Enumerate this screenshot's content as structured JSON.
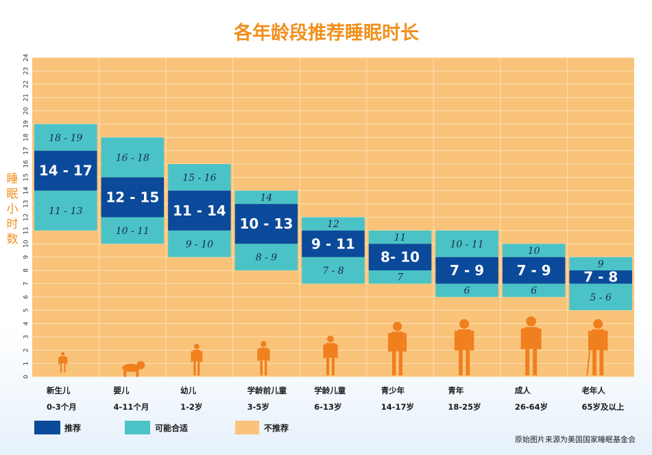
{
  "colors": {
    "recommended": "#0b4a9a",
    "acceptable": "#4bc3c6",
    "not_recommended": "#f9c37a",
    "silhouette": "#f07f1e",
    "title": "#f0901e"
  },
  "chart_data": {
    "type": "bar",
    "title": "各年龄段推荐睡眠时长",
    "ylabel": "睡眠小时数",
    "ylim": [
      0,
      24
    ],
    "yticks": [
      "0",
      "1",
      "2",
      "3",
      "4",
      "5",
      "6",
      "7",
      "8",
      "9",
      "10",
      "11",
      "12",
      "13",
      "14",
      "15",
      "16",
      "17",
      "18",
      "19",
      "20",
      "21",
      "22",
      "23",
      "24"
    ],
    "categories": [
      {
        "name": "新生儿",
        "age": "0-3个月",
        "icon": "newborn-silhouette"
      },
      {
        "name": "婴儿",
        "age": "4-11个月",
        "icon": "crawling-baby-silhouette"
      },
      {
        "name": "幼儿",
        "age": "1-2岁",
        "icon": "toddler-silhouette"
      },
      {
        "name": "学龄前儿童",
        "age": "3-5岁",
        "icon": "preschooler-silhouette"
      },
      {
        "name": "学龄儿童",
        "age": "6-13岁",
        "icon": "school-child-silhouette"
      },
      {
        "name": "青少年",
        "age": "14-17岁",
        "icon": "teenager-silhouette"
      },
      {
        "name": "青年",
        "age": "18-25岁",
        "icon": "young-adult-silhouette"
      },
      {
        "name": "成人",
        "age": "26-64岁",
        "icon": "adult-silhouette"
      },
      {
        "name": "老年人",
        "age": "65岁及以上",
        "icon": "older-adult-silhouette"
      }
    ],
    "series": [
      {
        "name": "推荐",
        "ranges": [
          [
            14,
            17
          ],
          [
            12,
            15
          ],
          [
            11,
            14
          ],
          [
            10,
            13
          ],
          [
            9,
            11
          ],
          [
            8,
            10
          ],
          [
            7,
            9
          ],
          [
            7,
            9
          ],
          [
            7,
            8
          ]
        ],
        "labels": [
          "14 - 17",
          "12 - 15",
          "11 - 14",
          "10 - 13",
          "9 - 11",
          "8- 10",
          "7 - 9",
          "7 - 9",
          "7 - 8"
        ]
      },
      {
        "name": "可能合适",
        "upper_ranges": [
          [
            17,
            19
          ],
          [
            15,
            18
          ],
          [
            14,
            16
          ],
          [
            13,
            14
          ],
          [
            11,
            12
          ],
          [
            10,
            11
          ],
          [
            9,
            11
          ],
          [
            9,
            10
          ],
          [
            8,
            9
          ]
        ],
        "upper_labels": [
          "18 - 19",
          "16 - 18",
          "15 - 16",
          "14",
          "12",
          "11",
          "10 - 11",
          "10",
          "9"
        ],
        "lower_ranges": [
          [
            11,
            14
          ],
          [
            10,
            12
          ],
          [
            9,
            11
          ],
          [
            8,
            10
          ],
          [
            7,
            9
          ],
          [
            7,
            8
          ],
          [
            6,
            7
          ],
          [
            6,
            7
          ],
          [
            5,
            7
          ]
        ],
        "lower_labels": [
          "11 - 13",
          "10 - 11",
          "9 - 10",
          "8 - 9",
          "7 - 8",
          "7",
          "6",
          "6",
          "5 - 6"
        ]
      }
    ],
    "legend": [
      {
        "label": "推荐",
        "color": "#0b4a9a"
      },
      {
        "label": "可能合适",
        "color": "#4bc3c6"
      },
      {
        "label": "不推荐",
        "color": "#f9c37a"
      }
    ],
    "legend_position": "bottom",
    "grid": true,
    "source": "原始图片来源为美国国家睡眠基金会"
  }
}
